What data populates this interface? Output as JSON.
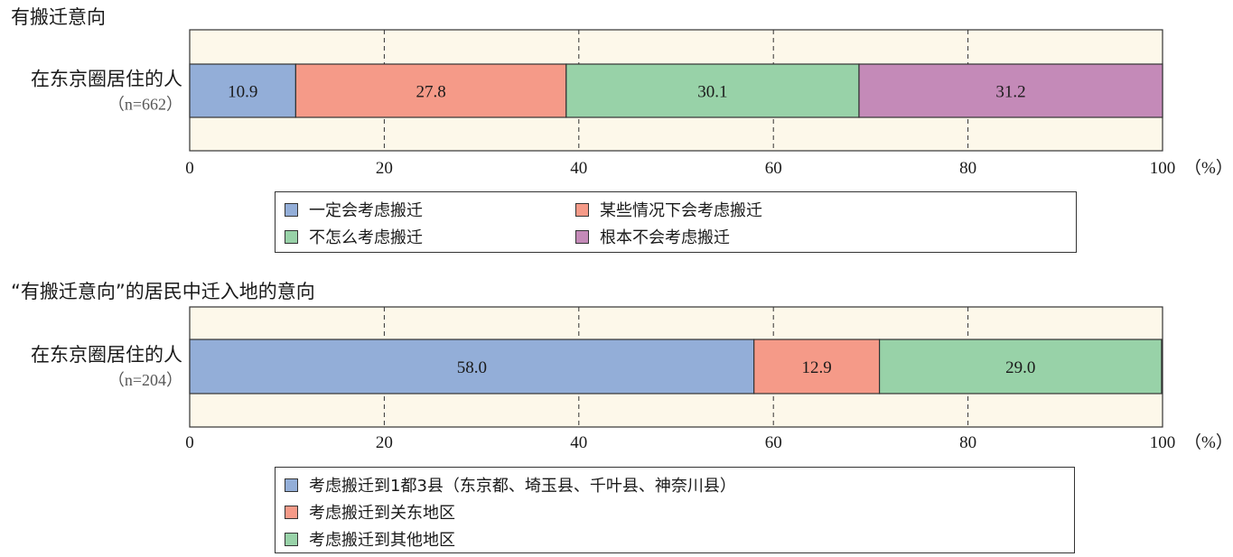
{
  "chart_data": [
    {
      "type": "bar",
      "orientation": "horizontal",
      "stacked": true,
      "title": "有搬迁意向",
      "categories": [
        {
          "label": "在东京圈居住的人",
          "sublabel": "（n=662）"
        }
      ],
      "series": [
        {
          "name": "一定会考虑搬迁",
          "values": [
            10.9
          ],
          "color": "#93aed8"
        },
        {
          "name": "某些情况下会考虑搬迁",
          "values": [
            27.8
          ],
          "color": "#f59a88"
        },
        {
          "name": "不怎么考虑搬迁",
          "values": [
            30.1
          ],
          "color": "#98d2a8"
        },
        {
          "name": "根本不会考虑搬迁",
          "values": [
            31.2
          ],
          "color": "#c48ab8"
        }
      ],
      "xlim": [
        0,
        100
      ],
      "xticks": [
        "0",
        "20",
        "40",
        "60",
        "80",
        "100"
      ],
      "unit": "（%）",
      "grid": "vertical dashed",
      "plot_background": "#fdf8ea",
      "legend": "below, two columns"
    },
    {
      "type": "bar",
      "orientation": "horizontal",
      "stacked": true,
      "title": "“有搬迁意向”的居民中迁入地的意向",
      "categories": [
        {
          "label": "在东京圈居住的人",
          "sublabel": "（n=204）"
        }
      ],
      "series": [
        {
          "name": "考虑搬迁到1都3县（东京都、埼玉县、千叶县、神奈川县）",
          "values": [
            58.0
          ],
          "color": "#93aed8"
        },
        {
          "name": "考虑搬迁到关东地区",
          "values": [
            12.9
          ],
          "color": "#f59a88"
        },
        {
          "name": "考虑搬迁到其他地区",
          "values": [
            29.0
          ],
          "color": "#98d2a8"
        }
      ],
      "xlim": [
        0,
        100
      ],
      "xticks": [
        "0",
        "20",
        "40",
        "60",
        "80",
        "100"
      ],
      "unit": "（%）",
      "grid": "vertical dashed",
      "plot_background": "#fdf8ea",
      "legend": "below, one column"
    }
  ]
}
